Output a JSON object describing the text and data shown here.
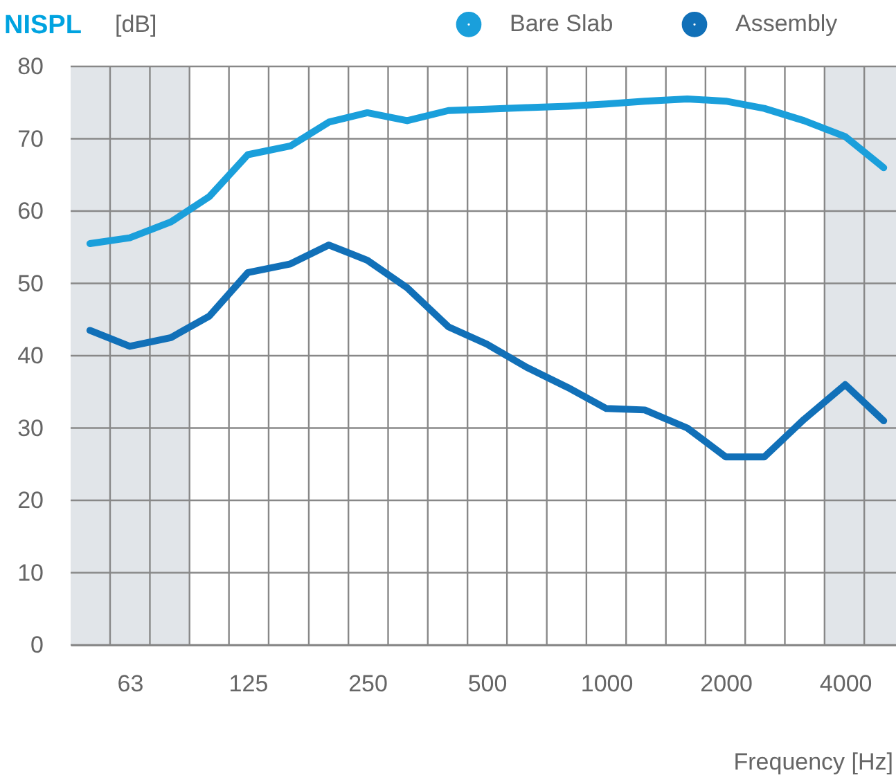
{
  "chart_data": {
    "type": "line",
    "title": "NISPL",
    "ylabel": "[dB]",
    "xlabel": "Frequency [Hz]",
    "x": [
      50,
      63,
      80,
      100,
      125,
      160,
      200,
      250,
      315,
      400,
      500,
      630,
      800,
      1000,
      1250,
      1600,
      2000,
      2500,
      3150,
      4000,
      5000
    ],
    "series": [
      {
        "name": "Bare Slab",
        "color": "#1a9fdb",
        "values": [
          55.5,
          56.3,
          58.5,
          62,
          67.8,
          69,
          72.3,
          73.6,
          72.5,
          73.9,
          74.1,
          74.3,
          74.5,
          74.8,
          75.2,
          75.5,
          75.2,
          74.2,
          72.5,
          70.3,
          66
        ]
      },
      {
        "name": "Assembly",
        "color": "#1170b8",
        "values": [
          43.5,
          41.3,
          42.5,
          45.5,
          51.5,
          52.7,
          55.3,
          53.2,
          49.4,
          44,
          41.6,
          38.4,
          35.6,
          32.7,
          32.5,
          30,
          26,
          26,
          31.2,
          36,
          31
        ]
      }
    ],
    "log": "x",
    "xlim": [
      44.7,
      5370
    ],
    "xticks": [
      {
        "value": 56.2,
        "label": null
      },
      63,
      {
        "value": 70.8,
        "label": null
      },
      {
        "value": 89.1,
        "label": null
      },
      {
        "value": 112,
        "label": null
      },
      125,
      {
        "value": 141,
        "label": null
      },
      {
        "value": 178,
        "label": null
      },
      {
        "value": 224,
        "label": null
      },
      250,
      {
        "value": 282,
        "label": null
      },
      {
        "value": 355,
        "label": null
      },
      {
        "value": 447,
        "label": null
      },
      500,
      {
        "value": 562,
        "label": null
      },
      {
        "value": 708,
        "label": null
      },
      {
        "value": 891,
        "label": null
      },
      1000,
      {
        "value": 1122,
        "label": null
      },
      {
        "value": 1413,
        "label": null
      },
      {
        "value": 1778,
        "label": null
      },
      2000,
      {
        "value": 2239,
        "label": null
      },
      {
        "value": 2818,
        "label": null
      },
      {
        "value": 3548,
        "label": null
      },
      4000,
      {
        "value": 4467,
        "label": null
      }
    ],
    "ylim": [
      0,
      80
    ],
    "yticks": [
      0,
      10,
      20,
      30,
      40,
      50,
      60,
      70,
      80
    ],
    "grid": true,
    "legend": "top right",
    "marker": "none",
    "line_style": "solid",
    "bands": [
      {
        "axis": "x",
        "from": 44.7,
        "to": 89.1,
        "color": "#e1e5e9"
      },
      {
        "axis": "x",
        "from": 3548,
        "to": 5370,
        "color": "#e1e5e9"
      }
    ]
  }
}
